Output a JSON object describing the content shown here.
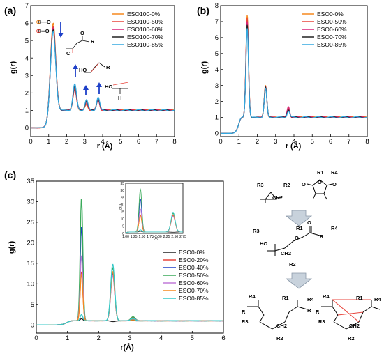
{
  "panels": {
    "a": {
      "label": "(a)",
      "ylabel": "g(r)",
      "xlabel": "r (Å)"
    },
    "b": {
      "label": "(b)",
      "ylabel": "g(r)",
      "xlabel": "r (Å)"
    },
    "c": {
      "label": "(c)",
      "ylabel": "g(r)",
      "xlabel": "r(Å)",
      "inset_xlabel": "r (Å)",
      "inset_ylabel": "g(r)"
    }
  },
  "chem_labels": {
    "co_single": "C—O",
    "co_double": "C═O",
    "r1": "R1",
    "r2": "R2",
    "r3": "R3",
    "r4": "R4",
    "ho": "HO",
    "ch2": "CH2",
    "o": "O",
    "r": "R",
    "c": "C",
    "h": "H"
  },
  "colors": {
    "orange": "#f5891f",
    "red": "#e8453c",
    "magenta": "#d8227a",
    "black": "#222222",
    "cyan": "#33a8e0",
    "dblue": "#1e40c8",
    "violet": "#c07ad8",
    "green": "#3aaa5a",
    "teal": "#35c9c9"
  },
  "chart_data": [
    {
      "id": "a",
      "type": "line",
      "xlabel": "r (Å)",
      "ylabel": "g(r)",
      "xlim": [
        0,
        8
      ],
      "ylim": [
        -0.5,
        7
      ],
      "xticks": [
        0,
        1,
        2,
        3,
        4,
        5,
        6,
        7,
        8
      ],
      "yticks": [
        0,
        1,
        2,
        3,
        4,
        5,
        6,
        7
      ],
      "legend": [
        "ESO100-0%",
        "ESO100-50%",
        "ESO100-60%",
        "ESO100-70%",
        "ESO100-85%"
      ],
      "series": [
        {
          "name": "ESO100-0%",
          "color": "#f5891f",
          "peaks": [
            [
              1.25,
              6.0,
              0.2
            ],
            [
              2.45,
              2.3,
              0.14
            ],
            [
              3.1,
              1.3,
              0.12
            ],
            [
              3.75,
              1.6,
              0.12
            ]
          ]
        },
        {
          "name": "ESO100-50%",
          "color": "#e8453c",
          "peaks": [
            [
              1.25,
              5.8,
              0.2
            ],
            [
              2.45,
              2.2,
              0.14
            ],
            [
              3.1,
              1.4,
              0.12
            ],
            [
              3.75,
              1.6,
              0.12
            ]
          ]
        },
        {
          "name": "ESO100-60%",
          "color": "#d8227a",
          "peaks": [
            [
              1.25,
              5.7,
              0.2
            ],
            [
              2.45,
              2.35,
              0.14
            ],
            [
              3.1,
              1.5,
              0.12
            ],
            [
              3.75,
              1.65,
              0.12
            ]
          ]
        },
        {
          "name": "ESO100-70%",
          "color": "#222222",
          "peaks": [
            [
              1.25,
              5.6,
              0.2
            ],
            [
              2.45,
              2.4,
              0.14
            ],
            [
              3.1,
              1.55,
              0.12
            ],
            [
              3.75,
              1.7,
              0.12
            ]
          ]
        },
        {
          "name": "ESO100-85%",
          "color": "#33a8e0",
          "peaks": [
            [
              1.25,
              5.5,
              0.2
            ],
            [
              2.45,
              2.5,
              0.14
            ],
            [
              3.1,
              1.6,
              0.12
            ],
            [
              3.75,
              1.75,
              0.12
            ]
          ]
        }
      ]
    },
    {
      "id": "b",
      "type": "line",
      "xlabel": "r (Å)",
      "ylabel": "g(r)",
      "xlim": [
        0,
        8
      ],
      "ylim": [
        -0.2,
        8
      ],
      "xticks": [
        0,
        1,
        2,
        3,
        4,
        5,
        6,
        7,
        8
      ],
      "yticks": [
        0,
        1,
        2,
        3,
        4,
        5,
        6,
        7,
        8
      ],
      "legend": [
        "ESO0-0%",
        "ESO0-50%",
        "ESO0-60%",
        "ESO0-70%",
        "ESO0-85%"
      ],
      "series": [
        {
          "name": "ESO0-0%",
          "color": "#f5891f",
          "peaks": [
            [
              1.45,
              7.4,
              0.1
            ],
            [
              2.45,
              3.0,
              0.1
            ],
            [
              3.7,
              1.5,
              0.1
            ]
          ]
        },
        {
          "name": "ESO0-50%",
          "color": "#e8453c",
          "peaks": [
            [
              1.45,
              7.2,
              0.1
            ],
            [
              2.45,
              2.9,
              0.1
            ],
            [
              3.7,
              1.6,
              0.1
            ]
          ]
        },
        {
          "name": "ESO0-60%",
          "color": "#d8227a",
          "peaks": [
            [
              1.45,
              7.0,
              0.1
            ],
            [
              2.45,
              2.95,
              0.1
            ],
            [
              3.7,
              1.7,
              0.1
            ]
          ]
        },
        {
          "name": "ESO0-70%",
          "color": "#222222",
          "peaks": [
            [
              1.45,
              6.8,
              0.1
            ],
            [
              2.45,
              2.9,
              0.1
            ],
            [
              3.7,
              1.5,
              0.1
            ]
          ]
        },
        {
          "name": "ESO0-85%",
          "color": "#33a8e0",
          "peaks": [
            [
              1.45,
              6.6,
              0.1
            ],
            [
              2.45,
              2.8,
              0.1
            ],
            [
              3.7,
              1.4,
              0.1
            ]
          ]
        }
      ]
    },
    {
      "id": "c",
      "type": "line",
      "xlabel": "r(Å)",
      "ylabel": "g(r)",
      "xlim": [
        0,
        6
      ],
      "ylim": [
        -2,
        35
      ],
      "xticks": [
        0,
        1,
        2,
        3,
        4,
        5,
        6
      ],
      "yticks": [
        0,
        5,
        10,
        15,
        20,
        25,
        30,
        35
      ],
      "legend": [
        "ESO0-0%",
        "ESO0-20%",
        "ESO0-40%",
        "ESO0-50%",
        "ESO0-60%",
        "ESO0-70%",
        "ESO0-85%"
      ],
      "series": [
        {
          "name": "ESO0-0%",
          "color": "#222222",
          "peaks": [
            [
              1.45,
              1.5,
              0.06
            ],
            [
              2.45,
              0.8,
              0.1
            ]
          ]
        },
        {
          "name": "ESO0-20%",
          "color": "#e8453c",
          "peaks": [
            [
              1.45,
              13.0,
              0.06
            ],
            [
              2.45,
              12.5,
              0.09
            ],
            [
              3.1,
              1.8,
              0.1
            ]
          ]
        },
        {
          "name": "ESO0-40%",
          "color": "#1e40c8",
          "peaks": [
            [
              1.45,
              24.0,
              0.06
            ],
            [
              2.45,
              13.0,
              0.09
            ],
            [
              3.1,
              1.5,
              0.1
            ]
          ]
        },
        {
          "name": "ESO0-50%",
          "color": "#3aaa5a",
          "peaks": [
            [
              1.45,
              31.0,
              0.06
            ],
            [
              2.45,
              14.0,
              0.09
            ],
            [
              3.1,
              2.0,
              0.1
            ]
          ]
        },
        {
          "name": "ESO0-60%",
          "color": "#c07ad8",
          "peaks": [
            [
              1.45,
              17.0,
              0.06
            ],
            [
              2.45,
              12.0,
              0.09
            ],
            [
              3.1,
              1.6,
              0.1
            ]
          ]
        },
        {
          "name": "ESO0-70%",
          "color": "#f5891f",
          "peaks": [
            [
              1.45,
              12.5,
              0.06
            ],
            [
              2.45,
              13.0,
              0.09
            ],
            [
              3.1,
              1.2,
              0.1
            ]
          ]
        },
        {
          "name": "ESO0-85%",
          "color": "#35c9c9",
          "peaks": [
            [
              1.45,
              2.5,
              0.06
            ],
            [
              2.45,
              14.8,
              0.09
            ],
            [
              3.1,
              1.5,
              0.1
            ]
          ]
        }
      ],
      "inset": {
        "xlim": [
          1.0,
          2.75
        ],
        "ylim": [
          0,
          35
        ],
        "xticks": [
          "1.00",
          "1.25",
          "1.50",
          "1.75",
          "2.00",
          "2.25",
          "2.50",
          "2.75"
        ],
        "yticks": [
          "0",
          "5",
          "10",
          "15",
          "20",
          "25",
          "30",
          "35"
        ]
      }
    }
  ]
}
